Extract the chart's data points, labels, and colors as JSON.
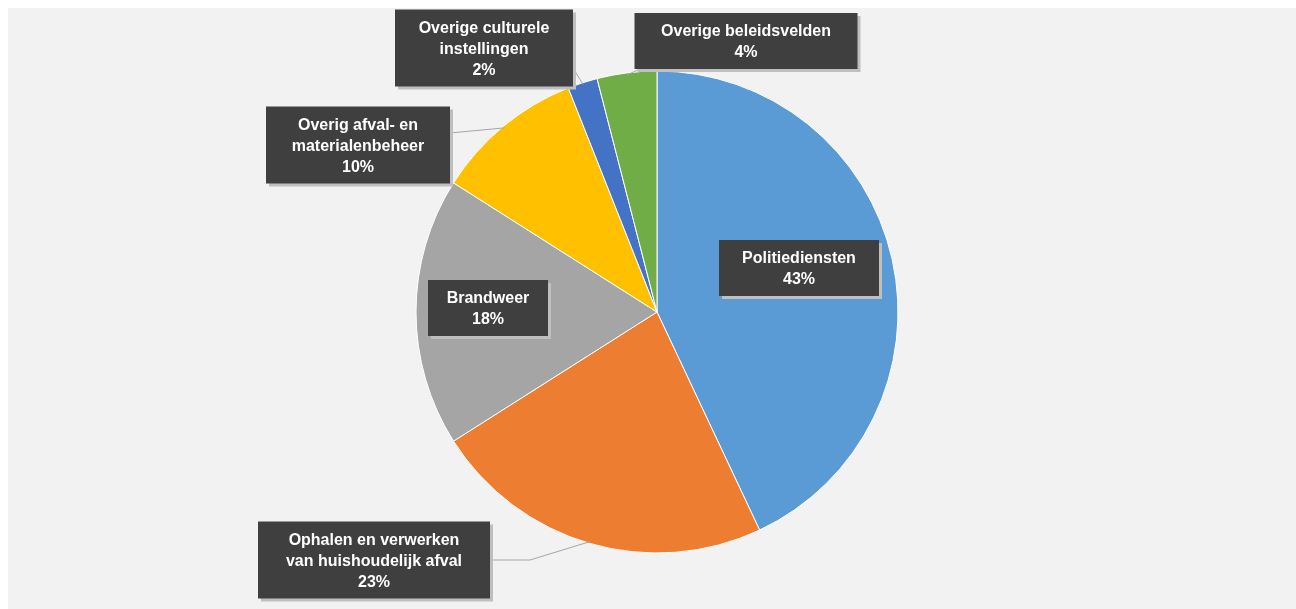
{
  "chart_data": {
    "type": "pie",
    "categories": [
      "Politiediensten",
      "Ophalen en verwerken van huishoudelijk afval",
      "Brandweer",
      "Overig afval- en materialenbeheer",
      "Overige culturele instellingen",
      "Overige beleidsvelden"
    ],
    "values": [
      43,
      23,
      18,
      10,
      2,
      4
    ],
    "value_labels": [
      "43%",
      "23%",
      "18%",
      "10%",
      "2%",
      "4%"
    ],
    "colors": [
      "#5b9bd5",
      "#ed7d31",
      "#a5a5a5",
      "#ffc000",
      "#4472c4",
      "#70ad47"
    ]
  }
}
